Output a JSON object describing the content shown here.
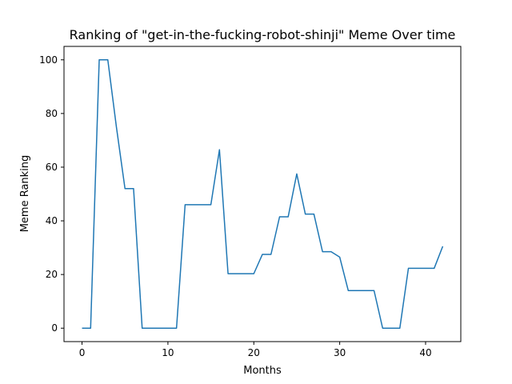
{
  "chart_data": {
    "type": "line",
    "title": "Ranking of \"get-in-the-fucking-robot-shinji\" Meme Over time",
    "xlabel": "Months",
    "ylabel": "Meme Ranking",
    "xlim": [
      -2.1,
      44.1
    ],
    "ylim": [
      -5,
      105
    ],
    "xticks": [
      0,
      10,
      20,
      30,
      40
    ],
    "yticks": [
      0,
      20,
      40,
      60,
      80,
      100
    ],
    "grid": false,
    "series": [
      {
        "color": "#1f77b4",
        "x": [
          0,
          1,
          2,
          3,
          4,
          5,
          6,
          7,
          8,
          9,
          10,
          11,
          12,
          13,
          14,
          15,
          16,
          17,
          18,
          19,
          20,
          21,
          22,
          23,
          24,
          25,
          26,
          27,
          28,
          29,
          30,
          31,
          32,
          33,
          34,
          35,
          36,
          37,
          38,
          39,
          40,
          41,
          42
        ],
        "values": [
          0,
          0,
          100,
          100,
          75,
          52,
          52,
          0,
          0,
          0,
          0,
          0,
          46,
          46,
          46,
          46,
          66.5,
          20.3,
          20.3,
          20.3,
          20.3,
          27.5,
          27.5,
          41.5,
          41.5,
          57.5,
          42.5,
          42.5,
          28.5,
          28.5,
          26.5,
          14,
          14,
          14,
          14,
          0,
          0,
          0,
          22.3,
          22.3,
          22.3,
          22.3,
          30.5
        ]
      }
    ]
  }
}
